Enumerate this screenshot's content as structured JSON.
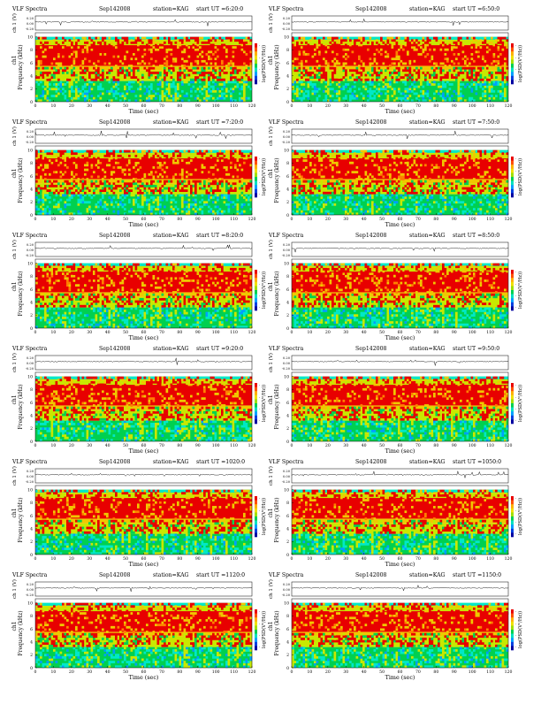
{
  "figure": {
    "header_left": "VLF  Spectra",
    "date": "Sep142008",
    "station": "station=KAG",
    "start_prefix": "start  UT  =",
    "xlabel": "Time  (sec)",
    "ylabel_top": "ch 1 (V)",
    "ylabel_spec": "Frequency  (kHz)",
    "ylabel_spec_ch": "ch1",
    "colorbar_label": "log(PSD(V²/Hz))",
    "colors": {
      "spectrum_palette": [
        "#0000c8",
        "#00a0ff",
        "#00e8c8",
        "#00d050",
        "#c8e800",
        "#f0c800",
        "#ff8000",
        "#e80000"
      ],
      "trace": "#000000"
    }
  },
  "chart_data": [
    {
      "type": "heatmap",
      "title": "VLF  Spectra  Sep142008  station=KAG  start  UT  =6:20:0",
      "start_ut": "6:20:0",
      "x_ticks": [
        0,
        10,
        20,
        30,
        40,
        50,
        60,
        70,
        80,
        90,
        100,
        110,
        120
      ],
      "x_range": [
        0,
        120
      ],
      "y_ticks": [
        0,
        2,
        4,
        6,
        8,
        10
      ],
      "y_range": [
        0,
        10
      ],
      "top_y_ticks": [
        "0.20",
        "0.00",
        "-0.20"
      ],
      "cbar_ticks": [
        "-",
        "-",
        "-",
        "-"
      ]
    },
    {
      "type": "heatmap",
      "title": "VLF  Spectra  Sep142008  station=KAG  start  UT  =6:50:0",
      "start_ut": "6:50:0",
      "x_ticks": [
        0,
        10,
        20,
        30,
        40,
        50,
        60,
        70,
        80,
        90,
        100,
        110,
        120
      ],
      "x_range": [
        0,
        120
      ],
      "y_ticks": [
        0,
        2,
        4,
        6,
        8,
        10
      ],
      "y_range": [
        0,
        10
      ],
      "top_y_ticks": [
        "0.20",
        "0.00",
        "-0.20"
      ],
      "cbar_ticks": [
        "-",
        "-",
        "-",
        "-"
      ]
    },
    {
      "type": "heatmap",
      "title": "VLF  Spectra  Sep142008  station=KAG  start  UT  =7:20:0",
      "start_ut": "7:20:0",
      "x_ticks": [
        0,
        10,
        20,
        30,
        40,
        50,
        60,
        70,
        80,
        90,
        100,
        110,
        120
      ],
      "x_range": [
        0,
        120
      ],
      "y_ticks": [
        0,
        2,
        4,
        6,
        8,
        10
      ],
      "y_range": [
        0,
        10
      ],
      "top_y_ticks": [
        "0.20",
        "0.00",
        "-0.20"
      ],
      "cbar_ticks": [
        "-",
        "-",
        "-",
        "-"
      ]
    },
    {
      "type": "heatmap",
      "title": "VLF  Spectra  Sep142008  station=KAG  start  UT  =7:50:0",
      "start_ut": "7:50:0",
      "x_ticks": [
        0,
        10,
        20,
        30,
        40,
        50,
        60,
        70,
        80,
        90,
        100,
        110,
        120
      ],
      "x_range": [
        0,
        120
      ],
      "y_ticks": [
        0,
        2,
        4,
        6,
        8,
        10
      ],
      "y_range": [
        0,
        10
      ],
      "top_y_ticks": [
        "0.20",
        "0.00",
        "-0.20"
      ],
      "cbar_ticks": [
        "-",
        "-",
        "-",
        "-"
      ]
    },
    {
      "type": "heatmap",
      "title": "VLF  Spectra  Sep142008  station=KAG  start  UT  =8:20:0",
      "start_ut": "8:20:0",
      "x_ticks": [
        0,
        10,
        20,
        30,
        40,
        50,
        60,
        70,
        80,
        90,
        100,
        110,
        120
      ],
      "x_range": [
        0,
        120
      ],
      "y_ticks": [
        0,
        2,
        4,
        6,
        8,
        10
      ],
      "y_range": [
        0,
        10
      ],
      "top_y_ticks": [
        "0.20",
        "0.00",
        "-0.20"
      ],
      "cbar_ticks": [
        "-",
        "-",
        "-",
        "-"
      ]
    },
    {
      "type": "heatmap",
      "title": "VLF  Spectra  Sep142008  station=KAG  start  UT  =8:50:0",
      "start_ut": "8:50:0",
      "x_ticks": [
        0,
        10,
        20,
        30,
        40,
        50,
        60,
        70,
        80,
        90,
        100,
        110,
        120
      ],
      "x_range": [
        0,
        120
      ],
      "y_ticks": [
        0,
        2,
        4,
        6,
        8,
        10
      ],
      "y_range": [
        0,
        10
      ],
      "top_y_ticks": [
        "0.20",
        "0.00",
        "-0.20"
      ],
      "cbar_ticks": [
        "-",
        "-",
        "-",
        "-"
      ]
    },
    {
      "type": "heatmap",
      "title": "VLF  Spectra  Sep142008  station=KAG  start  UT  =9:20:0",
      "start_ut": "9:20:0",
      "x_ticks": [
        0,
        10,
        20,
        30,
        40,
        50,
        60,
        70,
        80,
        90,
        100,
        110,
        120
      ],
      "x_range": [
        0,
        120
      ],
      "y_ticks": [
        0,
        2,
        4,
        6,
        8,
        10
      ],
      "y_range": [
        0,
        10
      ],
      "top_y_ticks": [
        "0.20",
        "0.00",
        "-0.20"
      ],
      "cbar_ticks": [
        "-",
        "-",
        "-",
        "-"
      ]
    },
    {
      "type": "heatmap",
      "title": "VLF  Spectra  Sep142008  station=KAG  start  UT  =9:50:0",
      "start_ut": "9:50:0",
      "x_ticks": [
        0,
        10,
        20,
        30,
        40,
        50,
        60,
        70,
        80,
        90,
        100,
        110,
        120
      ],
      "x_range": [
        0,
        120
      ],
      "y_ticks": [
        0,
        2,
        4,
        6,
        8,
        10
      ],
      "y_range": [
        0,
        10
      ],
      "top_y_ticks": [
        "0.20",
        "0.00",
        "-0.20"
      ],
      "cbar_ticks": [
        "-",
        "-",
        "-",
        "-"
      ]
    },
    {
      "type": "heatmap",
      "title": "VLF  Spectra  Sep142008  station=KAG  start  UT  =1020:0",
      "start_ut": "1020:0",
      "x_ticks": [
        0,
        10,
        20,
        30,
        40,
        50,
        60,
        70,
        80,
        90,
        100,
        110,
        120
      ],
      "x_range": [
        0,
        120
      ],
      "y_ticks": [
        0,
        2,
        4,
        6,
        8,
        10
      ],
      "y_range": [
        0,
        10
      ],
      "top_y_ticks": [
        "0.20",
        "0.00",
        "-0.20"
      ],
      "cbar_ticks": [
        "-",
        "-",
        "-",
        "-"
      ]
    },
    {
      "type": "heatmap",
      "title": "VLF  Spectra  Sep142008  station=KAG  start  UT  =1050:0",
      "start_ut": "1050:0",
      "x_ticks": [
        0,
        10,
        20,
        30,
        40,
        50,
        60,
        70,
        80,
        90,
        100,
        110,
        120
      ],
      "x_range": [
        0,
        120
      ],
      "y_ticks": [
        0,
        2,
        4,
        6,
        8,
        10
      ],
      "y_range": [
        0,
        10
      ],
      "top_y_ticks": [
        "0.20",
        "0.00",
        "-0.20"
      ],
      "cbar_ticks": [
        "-",
        "-",
        "-",
        "-"
      ]
    },
    {
      "type": "heatmap",
      "title": "VLF  Spectra  Sep142008  station=KAG  start  UT  =1120:0",
      "start_ut": "1120:0",
      "x_ticks": [
        0,
        10,
        20,
        30,
        40,
        50,
        60,
        70,
        80,
        90,
        100,
        110,
        120
      ],
      "x_range": [
        0,
        120
      ],
      "y_ticks": [
        0,
        2,
        4,
        6,
        8,
        10
      ],
      "y_range": [
        0,
        10
      ],
      "top_y_ticks": [
        "0.20",
        "0.00",
        "-0.20"
      ],
      "cbar_ticks": [
        "-",
        "-",
        "-",
        "-"
      ]
    },
    {
      "type": "heatmap",
      "title": "VLF  Spectra  Sep142008  station=KAG  start  UT  =1150:0",
      "start_ut": "1150:0",
      "x_ticks": [
        0,
        10,
        20,
        30,
        40,
        50,
        60,
        70,
        80,
        90,
        100,
        110,
        120
      ],
      "x_range": [
        0,
        120
      ],
      "y_ticks": [
        0,
        2,
        4,
        6,
        8,
        10
      ],
      "y_range": [
        0,
        10
      ],
      "top_y_ticks": [
        "0.20",
        "0.00",
        "-0.20"
      ],
      "cbar_ticks": [
        "-",
        "-",
        "-",
        "-"
      ]
    }
  ]
}
